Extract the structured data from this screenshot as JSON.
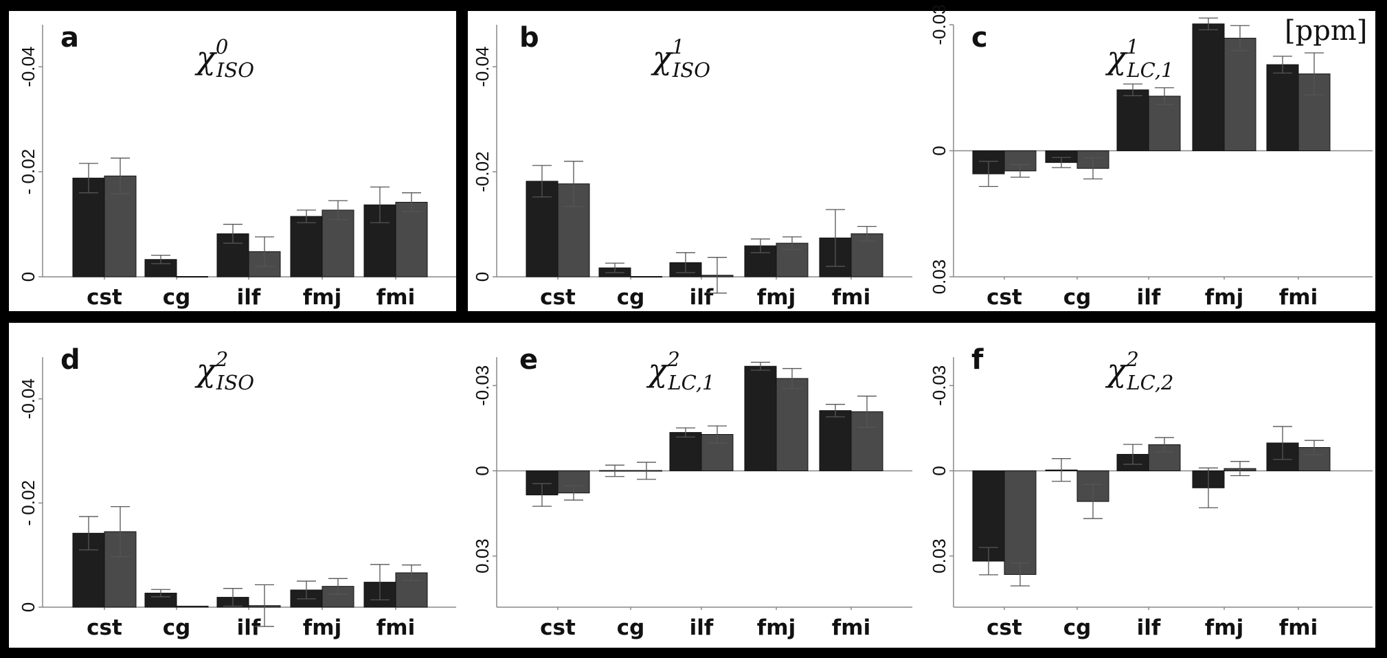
{
  "units_label": "[ppm]",
  "colors": {
    "series1": "#1e1e1e",
    "series2": "#4a4a4a",
    "axis": "#888888",
    "error": "#555555"
  },
  "chart_data": [
    {
      "id": "a",
      "letter": "a",
      "title": {
        "base": "χ",
        "sup": "0",
        "sub": "ISO"
      },
      "type": "bar",
      "categories": [
        "cst",
        "cg",
        "ilf",
        "fmj",
        "fmi"
      ],
      "ylim": [
        0,
        -0.048
      ],
      "yticks": [
        {
          "v": -0.04,
          "label": "-0.04"
        },
        {
          "v": -0.02,
          "label": "- 0.02"
        },
        {
          "v": 0,
          "label": "0"
        }
      ],
      "series": [
        {
          "name": "series1",
          "values": [
            -0.0188,
            -0.0033,
            -0.0082,
            -0.0115,
            -0.0137
          ],
          "errors": [
            0.0028,
            0.0008,
            0.0018,
            0.0012,
            0.0034
          ]
        },
        {
          "name": "series2",
          "values": [
            -0.0192,
            0,
            -0.0048,
            -0.0127,
            -0.0142
          ],
          "errors": [
            0.0034,
            0,
            0.0028,
            0.0018,
            0.0018
          ]
        }
      ]
    },
    {
      "id": "b",
      "letter": "b",
      "title": {
        "base": "χ",
        "sup": "1",
        "sub": "ISO"
      },
      "type": "bar",
      "categories": [
        "cst",
        "cg",
        "ilf",
        "fmj",
        "fmi"
      ],
      "ylim": [
        0,
        -0.048
      ],
      "yticks": [
        {
          "v": -0.04,
          "label": "-0.04"
        },
        {
          "v": -0.02,
          "label": "-0.02"
        },
        {
          "v": 0,
          "label": "0"
        }
      ],
      "series": [
        {
          "name": "series1",
          "values": [
            -0.0182,
            -0.0017,
            -0.0027,
            -0.0059,
            -0.0074
          ],
          "errors": [
            0.003,
            0.0009,
            0.0019,
            0.0013,
            0.0054
          ]
        },
        {
          "name": "series2",
          "values": [
            -0.0177,
            0,
            -0.0003,
            -0.0064,
            -0.0082
          ],
          "errors": [
            0.0043,
            0,
            0.0034,
            0.0012,
            0.0014
          ]
        }
      ]
    },
    {
      "id": "c",
      "letter": "c",
      "title": {
        "base": "χ",
        "sup": "1",
        "sub": "LC,1"
      },
      "type": "bar",
      "categories": [
        "cst",
        "cg",
        "ilf",
        "fmj",
        "fmi"
      ],
      "ylim": [
        0.03,
        -0.03
      ],
      "yticks": [
        {
          "v": -0.03,
          "label": "-0.03"
        },
        {
          "v": 0,
          "label": "0"
        },
        {
          "v": 0.03,
          "label": "0.03"
        }
      ],
      "series": [
        {
          "name": "series1",
          "values": [
            0.0055,
            0.0028,
            -0.0145,
            -0.0302,
            -0.0205
          ],
          "errors": [
            0.003,
            0.0012,
            0.0014,
            0.0014,
            0.002
          ]
        },
        {
          "name": "series2",
          "values": [
            0.0048,
            0.0042,
            -0.013,
            -0.0268,
            -0.0183
          ],
          "errors": [
            0.0015,
            0.0025,
            0.002,
            0.003,
            0.005
          ]
        }
      ]
    },
    {
      "id": "d",
      "letter": "d",
      "title": {
        "base": "χ",
        "sup": "2",
        "sub": "ISO"
      },
      "type": "bar",
      "categories": [
        "cst",
        "cg",
        "ilf",
        "fmj",
        "fmi"
      ],
      "ylim": [
        0,
        -0.048
      ],
      "yticks": [
        {
          "v": -0.04,
          "label": "-0.04"
        },
        {
          "v": -0.02,
          "label": "- 0.02"
        },
        {
          "v": 0,
          "label": "0"
        }
      ],
      "series": [
        {
          "name": "series1",
          "values": [
            -0.0142,
            -0.0027,
            -0.0019,
            -0.0033,
            -0.0048
          ],
          "errors": [
            0.0032,
            0.0007,
            0.0017,
            0.0017,
            0.0034
          ]
        },
        {
          "name": "series2",
          "values": [
            -0.0145,
            -0.0002,
            -0.0003,
            -0.004,
            -0.0066
          ],
          "errors": [
            0.0048,
            0,
            0.004,
            0.0015,
            0.0015
          ]
        }
      ]
    },
    {
      "id": "e",
      "letter": "e",
      "title": {
        "base": "χ",
        "sup": "2",
        "sub": "LC,1"
      },
      "type": "bar",
      "categories": [
        "cst",
        "cg",
        "ilf",
        "fmj",
        "fmi"
      ],
      "ylim": [
        0.048,
        -0.04
      ],
      "yticks": [
        {
          "v": -0.03,
          "label": "-0.03"
        },
        {
          "v": 0,
          "label": "0"
        },
        {
          "v": 0.03,
          "label": "0.03"
        }
      ],
      "series": [
        {
          "name": "series1",
          "values": [
            0.0085,
            0,
            -0.0135,
            -0.0368,
            -0.0212
          ],
          "errors": [
            0.004,
            0.002,
            0.0016,
            0.0014,
            0.0022
          ]
        },
        {
          "name": "series2",
          "values": [
            0.0078,
            0,
            -0.0128,
            -0.0325,
            -0.0208
          ],
          "errors": [
            0.0025,
            0.003,
            0.003,
            0.0035,
            0.0055
          ]
        }
      ]
    },
    {
      "id": "f",
      "letter": "f",
      "title": {
        "base": "χ",
        "sup": "2",
        "sub": "LC,2"
      },
      "type": "bar",
      "categories": [
        "cst",
        "cg",
        "ilf",
        "fmj",
        "fmi"
      ],
      "ylim": [
        0.048,
        -0.04
      ],
      "yticks": [
        {
          "v": -0.03,
          "label": "-0.03"
        },
        {
          "v": 0,
          "label": "0"
        },
        {
          "v": 0.03,
          "label": "0.03"
        }
      ],
      "series": [
        {
          "name": "series1",
          "values": [
            0.0318,
            -0.0003,
            -0.0058,
            0.006,
            -0.0098
          ],
          "errors": [
            0.0048,
            0.004,
            0.0035,
            0.007,
            0.0058
          ]
        },
        {
          "name": "series2",
          "values": [
            0.0365,
            0.0108,
            -0.0092,
            -0.0008,
            -0.0082
          ],
          "errors": [
            0.004,
            0.006,
            0.0025,
            0.0025,
            0.0025
          ]
        }
      ]
    }
  ]
}
